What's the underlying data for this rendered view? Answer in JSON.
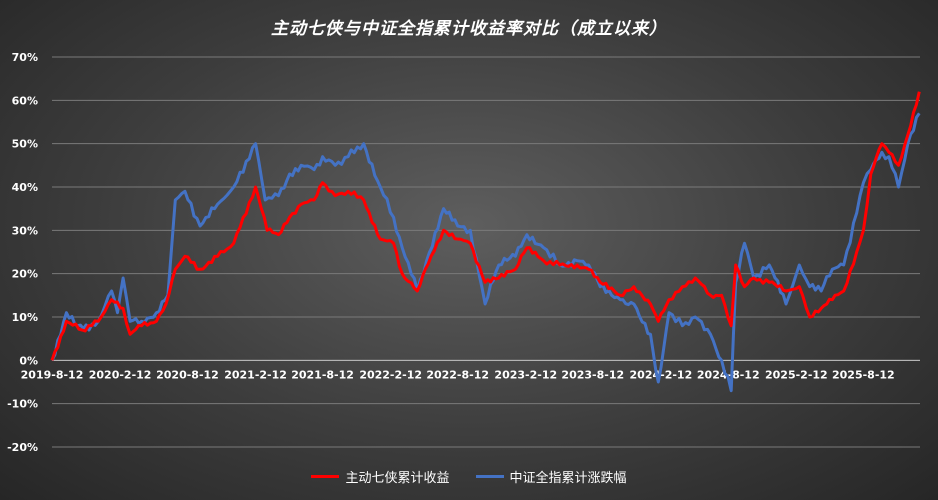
{
  "chart_data": {
    "type": "line",
    "title": "主动七侠与中证全指累计收益率对比（成立以来）",
    "xlabel": "",
    "ylabel": "",
    "ylim": [
      -20,
      70
    ],
    "yticks": [
      "70%",
      "60%",
      "50%",
      "40%",
      "30%",
      "20%",
      "10%",
      "0%",
      "-10%",
      "-20%"
    ],
    "x_tick_labels": [
      "2019-8-12",
      "2020-2-12",
      "2020-8-12",
      "2021-2-12",
      "2021-8-12",
      "2022-2-12",
      "2022-8-12",
      "2023-2-12",
      "2023-8-12",
      "2024-2-12",
      "2024-8-12",
      "2025-2-12",
      "2025-8-12"
    ],
    "grid": true,
    "legend_position": "bottom",
    "colors": {
      "series1": "#ff0000",
      "series2": "#4472c4"
    },
    "series": [
      {
        "name": "主动七侠累计收益",
        "points": [
          [
            "2019-08-12",
            0
          ],
          [
            "2019-09-20",
            9
          ],
          [
            "2019-11-01",
            7
          ],
          [
            "2019-12-15",
            9
          ],
          [
            "2020-01-20",
            14
          ],
          [
            "2020-02-20",
            12
          ],
          [
            "2020-03-10",
            6
          ],
          [
            "2020-04-10",
            8
          ],
          [
            "2020-05-20",
            9
          ],
          [
            "2020-06-15",
            13
          ],
          [
            "2020-07-10",
            21
          ],
          [
            "2020-08-05",
            24
          ],
          [
            "2020-09-15",
            21
          ],
          [
            "2020-11-01",
            24
          ],
          [
            "2020-12-15",
            27
          ],
          [
            "2021-02-12",
            40
          ],
          [
            "2021-03-15",
            30
          ],
          [
            "2021-04-15",
            29
          ],
          [
            "2021-05-15",
            33
          ],
          [
            "2021-06-15",
            36
          ],
          [
            "2021-07-20",
            37
          ],
          [
            "2021-08-12",
            41
          ],
          [
            "2021-09-15",
            38
          ],
          [
            "2021-10-20",
            39
          ],
          [
            "2021-12-01",
            37
          ],
          [
            "2022-01-15",
            28
          ],
          [
            "2022-02-20",
            27
          ],
          [
            "2022-03-15",
            20
          ],
          [
            "2022-04-25",
            16
          ],
          [
            "2022-06-01",
            24
          ],
          [
            "2022-07-05",
            30
          ],
          [
            "2022-08-12",
            28
          ],
          [
            "2022-09-15",
            27
          ],
          [
            "2022-10-25",
            18
          ],
          [
            "2022-12-01",
            19
          ],
          [
            "2023-01-15",
            21
          ],
          [
            "2023-02-15",
            26
          ],
          [
            "2023-04-01",
            23
          ],
          [
            "2023-05-15",
            22
          ],
          [
            "2023-07-01",
            22
          ],
          [
            "2023-08-01",
            21
          ],
          [
            "2023-09-01",
            18
          ],
          [
            "2023-10-25",
            15
          ],
          [
            "2023-12-01",
            17
          ],
          [
            "2024-01-15",
            13
          ],
          [
            "2024-02-05",
            9
          ],
          [
            "2024-03-05",
            14
          ],
          [
            "2024-04-10",
            17
          ],
          [
            "2024-05-15",
            19
          ],
          [
            "2024-06-25",
            15
          ],
          [
            "2024-07-25",
            15
          ],
          [
            "2024-08-20",
            8
          ],
          [
            "2024-09-01",
            22
          ],
          [
            "2024-09-25",
            17
          ],
          [
            "2024-10-20",
            19
          ],
          [
            "2024-12-01",
            18
          ],
          [
            "2025-01-15",
            16
          ],
          [
            "2025-02-20",
            17
          ],
          [
            "2025-03-20",
            10
          ],
          [
            "2025-04-20",
            12
          ],
          [
            "2025-05-20",
            14
          ],
          [
            "2025-06-20",
            16
          ],
          [
            "2025-07-25",
            25
          ],
          [
            "2025-08-12",
            30
          ],
          [
            "2025-09-01",
            43
          ],
          [
            "2025-10-01",
            50
          ],
          [
            "2025-10-20",
            48
          ],
          [
            "2025-11-15",
            45
          ],
          [
            "2025-12-10",
            52
          ],
          [
            "2026-01-10",
            62
          ]
        ]
      },
      {
        "name": "中证全指累计涨跌幅",
        "points": [
          [
            "2019-08-12",
            0
          ],
          [
            "2019-09-20",
            11
          ],
          [
            "2019-10-20",
            8
          ],
          [
            "2019-11-20",
            7
          ],
          [
            "2019-12-15",
            9
          ],
          [
            "2020-01-20",
            16
          ],
          [
            "2020-02-05",
            11
          ],
          [
            "2020-02-20",
            19
          ],
          [
            "2020-03-10",
            9
          ],
          [
            "2020-04-10",
            9
          ],
          [
            "2020-05-20",
            11
          ],
          [
            "2020-06-20",
            15
          ],
          [
            "2020-07-10",
            37
          ],
          [
            "2020-08-05",
            39
          ],
          [
            "2020-09-15",
            31
          ],
          [
            "2020-11-01",
            36
          ],
          [
            "2020-12-15",
            40
          ],
          [
            "2021-02-12",
            50
          ],
          [
            "2021-03-10",
            37
          ],
          [
            "2021-04-15",
            38
          ],
          [
            "2021-05-15",
            43
          ],
          [
            "2021-06-15",
            45
          ],
          [
            "2021-07-20",
            44
          ],
          [
            "2021-08-12",
            47
          ],
          [
            "2021-09-15",
            45
          ],
          [
            "2021-10-20",
            47
          ],
          [
            "2021-12-01",
            50
          ],
          [
            "2022-01-15",
            40
          ],
          [
            "2022-02-20",
            33
          ],
          [
            "2022-03-15",
            26
          ],
          [
            "2022-04-25",
            16
          ],
          [
            "2022-05-20",
            23
          ],
          [
            "2022-07-05",
            35
          ],
          [
            "2022-08-12",
            31
          ],
          [
            "2022-09-15",
            30
          ],
          [
            "2022-10-25",
            13
          ],
          [
            "2022-12-01",
            22
          ],
          [
            "2023-01-15",
            24
          ],
          [
            "2023-02-15",
            29
          ],
          [
            "2023-04-01",
            26
          ],
          [
            "2023-05-15",
            22
          ],
          [
            "2023-07-01",
            23
          ],
          [
            "2023-08-01",
            22
          ],
          [
            "2023-09-01",
            17
          ],
          [
            "2023-10-25",
            14
          ],
          [
            "2023-12-01",
            13
          ],
          [
            "2024-01-15",
            6
          ],
          [
            "2024-02-05",
            -5
          ],
          [
            "2024-03-05",
            11
          ],
          [
            "2024-04-10",
            8
          ],
          [
            "2024-05-15",
            10
          ],
          [
            "2024-06-25",
            6
          ],
          [
            "2024-07-25",
            0
          ],
          [
            "2024-08-20",
            -7
          ],
          [
            "2024-09-01",
            18
          ],
          [
            "2024-09-25",
            27
          ],
          [
            "2024-10-20",
            19
          ],
          [
            "2024-12-01",
            22
          ],
          [
            "2025-01-15",
            13
          ],
          [
            "2025-02-20",
            22
          ],
          [
            "2025-03-20",
            17
          ],
          [
            "2025-04-20",
            16
          ],
          [
            "2025-05-20",
            21
          ],
          [
            "2025-06-20",
            22
          ],
          [
            "2025-07-25",
            34
          ],
          [
            "2025-08-12",
            41
          ],
          [
            "2025-09-01",
            44
          ],
          [
            "2025-10-01",
            48
          ],
          [
            "2025-10-20",
            47
          ],
          [
            "2025-11-15",
            40
          ],
          [
            "2025-12-10",
            50
          ],
          [
            "2026-01-10",
            57
          ]
        ]
      }
    ]
  }
}
